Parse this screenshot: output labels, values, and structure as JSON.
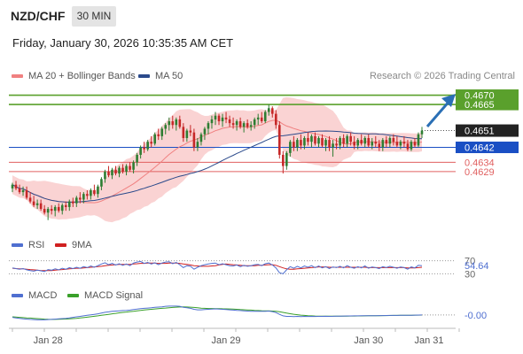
{
  "header": {
    "pair": "NZD/CHF",
    "timeframe": "30 MIN",
    "timestamp": "Friday, January 30, 2026 10:35:35 AM CET"
  },
  "legend": {
    "ma20_bb": "MA 20 + Bollinger Bands",
    "ma50": "MA 50",
    "credit": "Research © 2026 Trading Central",
    "rsi": "RSI",
    "rsi_ma": "9MA",
    "macd": "MACD",
    "macd_signal": "MACD Signal"
  },
  "colors": {
    "ma20": "#f08080",
    "ma50": "#2b4a8b",
    "bands": "#f9c8c8",
    "candle_up": "#2e7d32",
    "candle_down": "#c62828",
    "resistance": "#5aa02c",
    "support_blue": "#1a4fc4",
    "support_red": "#e06060",
    "price_box": "#222222",
    "arrow": "#2a6fb5",
    "rsi": "#4f6fd0",
    "rsi_ma": "#d02020",
    "macd": "#4f6fd0",
    "macd_signal": "#3aa02a"
  },
  "chart_data": {
    "type": "candlestick",
    "ylim": [
      0.46,
      0.4675
    ],
    "x_tick_labels": [
      "Jan 28",
      "Jan 29",
      "Jan 30",
      "Jan 31"
    ],
    "x_tick_index": [
      10,
      60,
      100,
      117
    ],
    "current_price": "0.4651",
    "current_price_value": 0.4651,
    "levels": [
      {
        "label": "0.4670",
        "value": 0.467,
        "kind": "resistance"
      },
      {
        "label": "0.4665",
        "value": 0.4665,
        "kind": "resistance"
      },
      {
        "label": "0.4642",
        "value": 0.4642,
        "kind": "pivot"
      },
      {
        "label": "0.4634",
        "value": 0.4634,
        "kind": "support"
      },
      {
        "label": "0.4629",
        "value": 0.4629,
        "kind": "support"
      }
    ],
    "candles": [
      [
        0.462,
        0.4623,
        0.4618,
        0.4622
      ],
      [
        0.4622,
        0.4624,
        0.4619,
        0.462
      ],
      [
        0.462,
        0.4622,
        0.4617,
        0.4618
      ],
      [
        0.4618,
        0.4621,
        0.4616,
        0.4619
      ],
      [
        0.4619,
        0.4621,
        0.4614,
        0.4615
      ],
      [
        0.4615,
        0.4618,
        0.4612,
        0.4613
      ],
      [
        0.4613,
        0.4616,
        0.461,
        0.4611
      ],
      [
        0.4611,
        0.4614,
        0.4609,
        0.4612
      ],
      [
        0.4612,
        0.4614,
        0.4608,
        0.4609
      ],
      [
        0.4609,
        0.4611,
        0.4606,
        0.4607
      ],
      [
        0.4607,
        0.461,
        0.4603,
        0.4609
      ],
      [
        0.4609,
        0.4611,
        0.4606,
        0.4608
      ],
      [
        0.4608,
        0.4611,
        0.4605,
        0.461
      ],
      [
        0.461,
        0.4612,
        0.4607,
        0.4608
      ],
      [
        0.4608,
        0.4612,
        0.4606,
        0.4611
      ],
      [
        0.4611,
        0.4613,
        0.4608,
        0.461
      ],
      [
        0.461,
        0.4614,
        0.4608,
        0.4613
      ],
      [
        0.4613,
        0.4615,
        0.461,
        0.4612
      ],
      [
        0.4612,
        0.4616,
        0.461,
        0.4615
      ],
      [
        0.4615,
        0.4618,
        0.4612,
        0.4614
      ],
      [
        0.4614,
        0.4618,
        0.4612,
        0.4617
      ],
      [
        0.4617,
        0.4619,
        0.4614,
        0.4616
      ],
      [
        0.4616,
        0.462,
        0.4614,
        0.4619
      ],
      [
        0.4619,
        0.4622,
        0.4616,
        0.4617
      ],
      [
        0.4617,
        0.4622,
        0.4615,
        0.4621
      ],
      [
        0.4621,
        0.4626,
        0.4619,
        0.4625
      ],
      [
        0.4625,
        0.463,
        0.4623,
        0.4629
      ],
      [
        0.4629,
        0.4632,
        0.4626,
        0.4627
      ],
      [
        0.4627,
        0.4631,
        0.4625,
        0.463
      ],
      [
        0.463,
        0.4632,
        0.4627,
        0.4628
      ],
      [
        0.4628,
        0.4632,
        0.4626,
        0.4631
      ],
      [
        0.4631,
        0.4633,
        0.4628,
        0.4629
      ],
      [
        0.4629,
        0.4633,
        0.4627,
        0.4632
      ],
      [
        0.4632,
        0.4634,
        0.4629,
        0.463
      ],
      [
        0.463,
        0.4635,
        0.4628,
        0.4634
      ],
      [
        0.4634,
        0.4639,
        0.4632,
        0.4638
      ],
      [
        0.4638,
        0.4643,
        0.4636,
        0.4642
      ],
      [
        0.4642,
        0.4645,
        0.4639,
        0.4641
      ],
      [
        0.4641,
        0.4646,
        0.464,
        0.4645
      ],
      [
        0.4645,
        0.4648,
        0.4642,
        0.4644
      ],
      [
        0.4644,
        0.465,
        0.4643,
        0.4649
      ],
      [
        0.4649,
        0.4652,
        0.4646,
        0.4648
      ],
      [
        0.4648,
        0.4653,
        0.4646,
        0.4652
      ],
      [
        0.4652,
        0.4655,
        0.4649,
        0.4654
      ],
      [
        0.4654,
        0.4658,
        0.4651,
        0.4656
      ],
      [
        0.4656,
        0.4659,
        0.4652,
        0.4654
      ],
      [
        0.4654,
        0.4658,
        0.4651,
        0.4657
      ],
      [
        0.4657,
        0.4659,
        0.4652,
        0.4653
      ],
      [
        0.4653,
        0.4655,
        0.4645,
        0.4647
      ],
      [
        0.4647,
        0.4652,
        0.4645,
        0.4651
      ],
      [
        0.4651,
        0.4654,
        0.4648,
        0.465
      ],
      [
        0.465,
        0.4652,
        0.464,
        0.4642
      ],
      [
        0.4642,
        0.4647,
        0.464,
        0.4645
      ],
      [
        0.4645,
        0.465,
        0.4643,
        0.4649
      ],
      [
        0.4649,
        0.4653,
        0.4646,
        0.4652
      ],
      [
        0.4652,
        0.4656,
        0.4649,
        0.4655
      ],
      [
        0.4655,
        0.4659,
        0.4652,
        0.4657
      ],
      [
        0.4657,
        0.4661,
        0.4654,
        0.4659
      ],
      [
        0.4659,
        0.466,
        0.4654,
        0.4656
      ],
      [
        0.4656,
        0.466,
        0.4653,
        0.4658
      ],
      [
        0.4658,
        0.4661,
        0.4655,
        0.4657
      ],
      [
        0.4657,
        0.4659,
        0.4653,
        0.4655
      ],
      [
        0.4655,
        0.4658,
        0.4652,
        0.4654
      ],
      [
        0.4654,
        0.4657,
        0.4651,
        0.4656
      ],
      [
        0.4656,
        0.4658,
        0.4652,
        0.4653
      ],
      [
        0.4653,
        0.4656,
        0.465,
        0.4655
      ],
      [
        0.4655,
        0.4657,
        0.4652,
        0.4653
      ],
      [
        0.4653,
        0.4656,
        0.4651,
        0.4654
      ],
      [
        0.4654,
        0.4658,
        0.4652,
        0.4657
      ],
      [
        0.4657,
        0.466,
        0.4654,
        0.4658
      ],
      [
        0.4658,
        0.4661,
        0.4655,
        0.4656
      ],
      [
        0.4656,
        0.4662,
        0.4655,
        0.4661
      ],
      [
        0.4661,
        0.4665,
        0.4659,
        0.4663
      ],
      [
        0.4663,
        0.4664,
        0.4658,
        0.466
      ],
      [
        0.466,
        0.4662,
        0.4652,
        0.4654
      ],
      [
        0.4654,
        0.4656,
        0.4636,
        0.4638
      ],
      [
        0.4638,
        0.464,
        0.4628,
        0.4632
      ],
      [
        0.4632,
        0.464,
        0.463,
        0.4639
      ],
      [
        0.4639,
        0.4646,
        0.4637,
        0.4645
      ],
      [
        0.4645,
        0.4648,
        0.464,
        0.4642
      ],
      [
        0.4642,
        0.4647,
        0.464,
        0.4646
      ],
      [
        0.4646,
        0.4649,
        0.4641,
        0.4643
      ],
      [
        0.4643,
        0.4648,
        0.4641,
        0.4647
      ],
      [
        0.4647,
        0.465,
        0.4643,
        0.4645
      ],
      [
        0.4645,
        0.4649,
        0.4642,
        0.4648
      ],
      [
        0.4648,
        0.465,
        0.4643,
        0.4644
      ],
      [
        0.4644,
        0.4648,
        0.4642,
        0.4647
      ],
      [
        0.4647,
        0.4649,
        0.4642,
        0.4643
      ],
      [
        0.4643,
        0.4647,
        0.464,
        0.4646
      ],
      [
        0.4646,
        0.4648,
        0.464,
        0.4642
      ],
      [
        0.4642,
        0.4646,
        0.4637,
        0.4644
      ],
      [
        0.4644,
        0.4647,
        0.4641,
        0.4643
      ],
      [
        0.4643,
        0.4648,
        0.4641,
        0.4647
      ],
      [
        0.4647,
        0.4649,
        0.4642,
        0.4644
      ],
      [
        0.4644,
        0.4649,
        0.4642,
        0.4648
      ],
      [
        0.4648,
        0.465,
        0.4643,
        0.4645
      ],
      [
        0.4645,
        0.4648,
        0.4641,
        0.4643
      ],
      [
        0.4643,
        0.4647,
        0.4641,
        0.4646
      ],
      [
        0.4646,
        0.4649,
        0.4643,
        0.4644
      ],
      [
        0.4644,
        0.4648,
        0.4642,
        0.4647
      ],
      [
        0.4647,
        0.4649,
        0.4642,
        0.4643
      ],
      [
        0.4643,
        0.4647,
        0.4641,
        0.4645
      ],
      [
        0.4645,
        0.4648,
        0.4642,
        0.4644
      ],
      [
        0.4644,
        0.4646,
        0.464,
        0.4642
      ],
      [
        0.4642,
        0.4647,
        0.464,
        0.4646
      ],
      [
        0.4646,
        0.4648,
        0.4642,
        0.4644
      ],
      [
        0.4644,
        0.4648,
        0.4642,
        0.4647
      ],
      [
        0.4647,
        0.4649,
        0.4643,
        0.4645
      ],
      [
        0.4645,
        0.4648,
        0.4642,
        0.4643
      ],
      [
        0.4643,
        0.4646,
        0.4641,
        0.4645
      ],
      [
        0.4645,
        0.4648,
        0.4642,
        0.4644
      ],
      [
        0.4644,
        0.4646,
        0.464,
        0.4641
      ],
      [
        0.4641,
        0.4646,
        0.464,
        0.4645
      ],
      [
        0.4645,
        0.4647,
        0.4642,
        0.4643
      ],
      [
        0.4643,
        0.465,
        0.4642,
        0.4649
      ],
      [
        0.4649,
        0.4653,
        0.4647,
        0.4651
      ]
    ],
    "rsi": {
      "scale": [
        0,
        100
      ],
      "tick_labels": [
        "70",
        "30"
      ],
      "tick_values": [
        70,
        30
      ],
      "last_value": "54.64",
      "rsi_values": [
        48,
        46,
        44,
        46,
        42,
        40,
        38,
        41,
        39,
        37,
        43,
        41,
        45,
        42,
        47,
        44,
        49,
        46,
        50,
        47,
        52,
        49,
        54,
        50,
        55,
        60,
        64,
        58,
        62,
        57,
        61,
        56,
        60,
        55,
        63,
        66,
        68,
        62,
        65,
        60,
        64,
        58,
        63,
        66,
        67,
        61,
        65,
        58,
        49,
        55,
        53,
        44,
        50,
        55,
        58,
        60,
        62,
        63,
        58,
        61,
        58,
        55,
        54,
        57,
        52,
        56,
        53,
        55,
        58,
        59,
        55,
        61,
        63,
        57,
        48,
        33,
        30,
        42,
        52,
        47,
        53,
        48,
        54,
        50,
        55,
        49,
        54,
        48,
        52,
        46,
        51,
        49,
        53,
        48,
        55,
        50,
        47,
        52,
        48,
        54,
        47,
        51,
        49,
        46,
        52,
        49,
        53,
        50,
        47,
        51,
        49,
        44,
        51,
        48,
        56,
        55
      ],
      "ma_values": [
        47,
        46,
        45,
        45,
        44,
        43,
        42,
        41,
        40,
        40,
        40,
        40,
        41,
        42,
        43,
        44,
        45,
        46,
        47,
        47,
        48,
        49,
        50,
        51,
        52,
        53,
        55,
        56,
        57,
        58,
        59,
        59,
        59,
        59,
        60,
        61,
        62,
        62,
        63,
        63,
        63,
        62,
        62,
        62,
        63,
        63,
        63,
        62,
        60,
        59,
        57,
        55,
        54,
        53,
        53,
        53,
        54,
        55,
        57,
        59,
        60,
        59,
        58,
        57,
        56,
        55,
        55,
        55,
        55,
        56,
        56,
        57,
        58,
        58,
        56,
        52,
        48,
        45,
        44,
        44,
        45,
        46,
        47,
        48,
        49,
        50,
        51,
        51,
        51,
        50,
        50,
        50,
        50,
        50,
        50,
        50,
        50,
        50,
        50,
        50,
        49,
        49,
        49,
        49,
        49,
        49,
        49,
        49,
        49,
        49,
        49,
        48,
        48,
        48,
        49,
        50
      ]
    },
    "macd": {
      "last_value": "-0.00",
      "macd_values": [
        -0.5,
        -0.6,
        -0.7,
        -0.8,
        -0.85,
        -0.9,
        -0.95,
        -1.0,
        -1.0,
        -1.0,
        -0.95,
        -0.9,
        -0.85,
        -0.8,
        -0.75,
        -0.7,
        -0.6,
        -0.5,
        -0.4,
        -0.3,
        -0.2,
        -0.1,
        0.0,
        0.1,
        0.2,
        0.35,
        0.5,
        0.6,
        0.7,
        0.75,
        0.8,
        0.85,
        0.9,
        0.95,
        1.05,
        1.15,
        1.25,
        1.3,
        1.35,
        1.4,
        1.5,
        1.55,
        1.6,
        1.7,
        1.75,
        1.75,
        1.75,
        1.7,
        1.5,
        1.4,
        1.3,
        1.1,
        1.0,
        1.0,
        1.05,
        1.1,
        1.15,
        1.2,
        1.15,
        1.1,
        1.05,
        1.0,
        0.95,
        0.9,
        0.85,
        0.8,
        0.75,
        0.7,
        0.7,
        0.72,
        0.7,
        0.72,
        0.75,
        0.65,
        0.45,
        0.1,
        -0.2,
        -0.3,
        -0.3,
        -0.35,
        -0.3,
        -0.35,
        -0.3,
        -0.32,
        -0.3,
        -0.32,
        -0.3,
        -0.3,
        -0.28,
        -0.3,
        -0.28,
        -0.26,
        -0.25,
        -0.24,
        -0.22,
        -0.22,
        -0.2,
        -0.2,
        -0.18,
        -0.18,
        -0.17,
        -0.16,
        -0.16,
        -0.15,
        -0.14,
        -0.13,
        -0.12,
        -0.12,
        -0.11,
        -0.1,
        -0.1,
        -0.09,
        -0.08,
        -0.06,
        -0.04,
        -0.02
      ],
      "signal_values": [
        -0.4,
        -0.45,
        -0.5,
        -0.55,
        -0.6,
        -0.65,
        -0.7,
        -0.75,
        -0.8,
        -0.85,
        -0.88,
        -0.9,
        -0.9,
        -0.88,
        -0.86,
        -0.83,
        -0.8,
        -0.75,
        -0.7,
        -0.63,
        -0.55,
        -0.47,
        -0.38,
        -0.29,
        -0.2,
        -0.1,
        0.0,
        0.1,
        0.2,
        0.3,
        0.4,
        0.48,
        0.56,
        0.64,
        0.72,
        0.8,
        0.88,
        0.96,
        1.04,
        1.1,
        1.17,
        1.24,
        1.3,
        1.36,
        1.42,
        1.48,
        1.53,
        1.57,
        1.58,
        1.56,
        1.53,
        1.47,
        1.4,
        1.34,
        1.3,
        1.27,
        1.26,
        1.25,
        1.24,
        1.22,
        1.2,
        1.17,
        1.14,
        1.1,
        1.06,
        1.02,
        0.98,
        0.94,
        0.9,
        0.86,
        0.83,
        0.8,
        0.78,
        0.76,
        0.72,
        0.62,
        0.48,
        0.35,
        0.22,
        0.12,
        0.03,
        -0.05,
        -0.12,
        -0.17,
        -0.2,
        -0.23,
        -0.25,
        -0.26,
        -0.27,
        -0.27,
        -0.27,
        -0.27,
        -0.26,
        -0.26,
        -0.25,
        -0.24,
        -0.23,
        -0.22,
        -0.21,
        -0.2,
        -0.19,
        -0.18,
        -0.17,
        -0.16,
        -0.15,
        -0.14,
        -0.13,
        -0.12,
        -0.11,
        -0.1,
        -0.09,
        -0.08,
        -0.07,
        -0.06,
        -0.05,
        -0.04
      ]
    }
  }
}
